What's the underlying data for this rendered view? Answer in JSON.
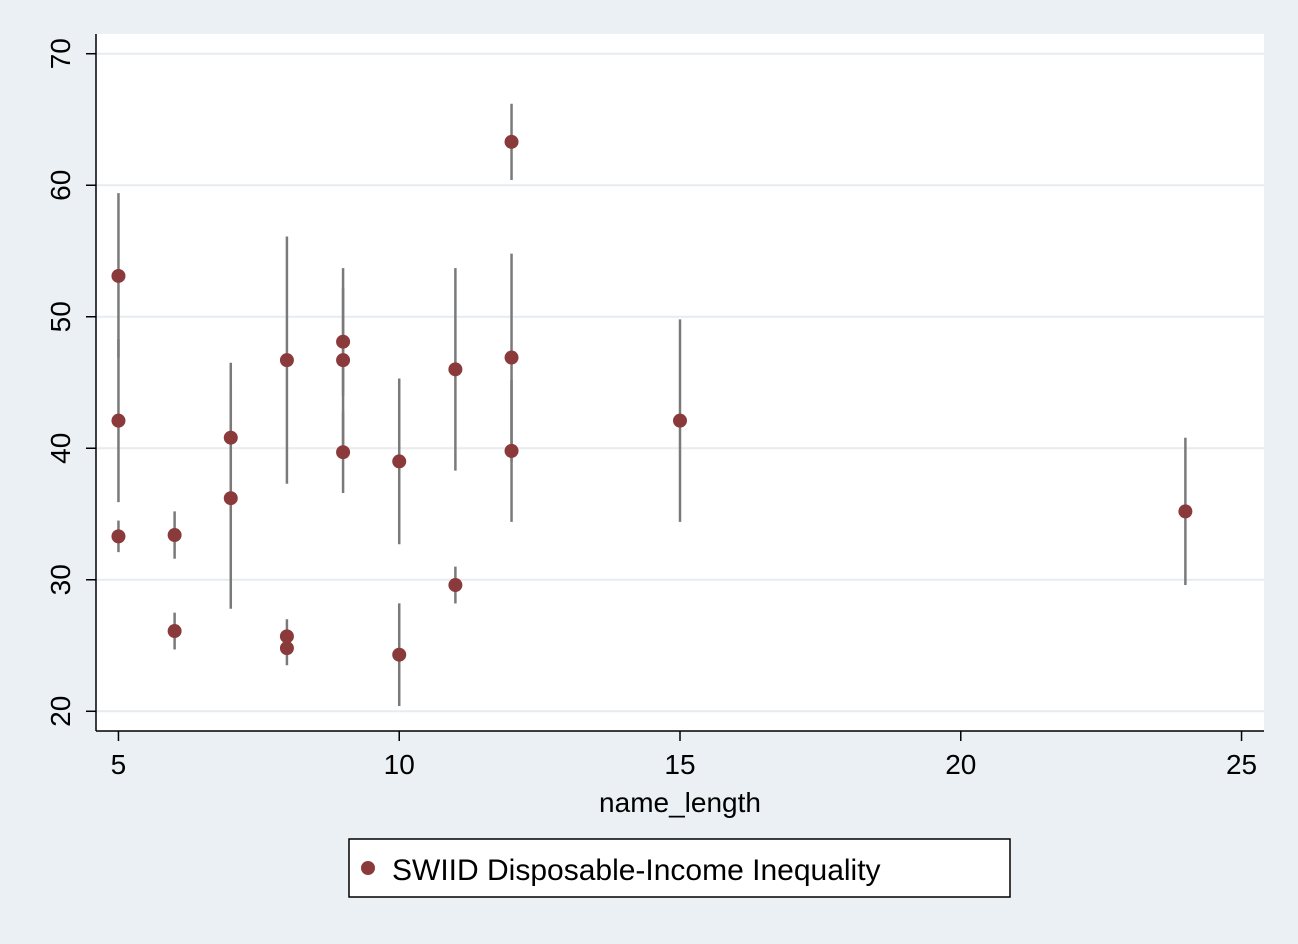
{
  "chart_data": {
    "type": "scatter",
    "title": "",
    "xlabel": "name_length",
    "ylabel": "",
    "xlim": [
      4.6,
      25.4
    ],
    "ylim": [
      18.5,
      71.5
    ],
    "xticks": [
      5,
      10,
      15,
      20,
      25
    ],
    "yticks": [
      20,
      30,
      40,
      50,
      60,
      70
    ],
    "grid": true,
    "legend_position": "bottom-center",
    "series": [
      {
        "name": "SWIID Disposable-Income Inequality",
        "points": [
          {
            "x": 5,
            "y": 53.1,
            "low": 46.9,
            "high": 59.4
          },
          {
            "x": 5,
            "y": 42.1,
            "low": 35.9,
            "high": 48.3
          },
          {
            "x": 5,
            "y": 33.3,
            "low": 32.1,
            "high": 34.5
          },
          {
            "x": 6,
            "y": 33.4,
            "low": 31.6,
            "high": 35.2
          },
          {
            "x": 6,
            "y": 26.1,
            "low": 24.7,
            "high": 27.5
          },
          {
            "x": 7,
            "y": 40.8,
            "low": 35.1,
            "high": 46.5
          },
          {
            "x": 7,
            "y": 36.2,
            "low": 27.8,
            "high": 44.6
          },
          {
            "x": 8,
            "y": 46.7,
            "low": 37.3,
            "high": 56.1
          },
          {
            "x": 8,
            "y": 25.7,
            "low": 24.4,
            "high": 27.0
          },
          {
            "x": 8,
            "y": 24.8,
            "low": 23.5,
            "high": 26.1
          },
          {
            "x": 9,
            "y": 48.1,
            "low": 44.0,
            "high": 52.2
          },
          {
            "x": 9,
            "y": 46.7,
            "low": 39.7,
            "high": 53.7
          },
          {
            "x": 9,
            "y": 39.7,
            "low": 36.6,
            "high": 42.8
          },
          {
            "x": 10,
            "y": 39.0,
            "low": 32.7,
            "high": 45.3
          },
          {
            "x": 10,
            "y": 24.3,
            "low": 20.4,
            "high": 28.2
          },
          {
            "x": 11,
            "y": 46.0,
            "low": 38.3,
            "high": 53.7
          },
          {
            "x": 11,
            "y": 29.6,
            "low": 28.2,
            "high": 31.0
          },
          {
            "x": 12,
            "y": 63.3,
            "low": 60.4,
            "high": 66.2
          },
          {
            "x": 12,
            "y": 46.9,
            "low": 39.0,
            "high": 54.8
          },
          {
            "x": 12,
            "y": 39.8,
            "low": 34.4,
            "high": 45.2
          },
          {
            "x": 15,
            "y": 42.1,
            "low": 34.4,
            "high": 49.8
          },
          {
            "x": 24,
            "y": 35.2,
            "low": 29.6,
            "high": 40.8
          }
        ]
      }
    ]
  },
  "colors": {
    "background": "#eaf0f3",
    "plot_area": "#ffffff",
    "marker": "#8b3a3c",
    "error_bar": "#7a7a7a",
    "gridline": "#e6ecef",
    "axis": "#000000"
  }
}
